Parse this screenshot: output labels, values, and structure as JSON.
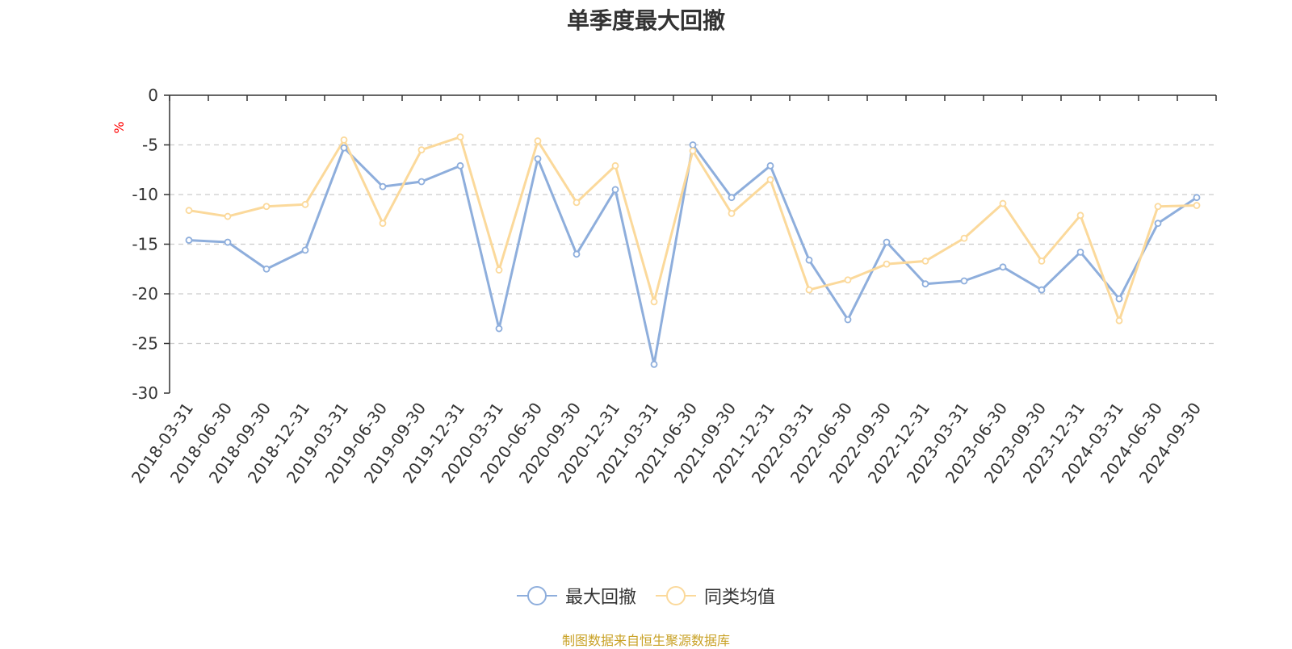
{
  "title": "单季度最大回撤",
  "source_note": "制图数据来自恒生聚源数据库",
  "colors": {
    "series1": "#8eaedc",
    "series2": "#fbd99b",
    "grid": "#cccccc",
    "axis": "#333333",
    "unit": "#ff0000"
  },
  "chart_data": {
    "type": "line",
    "ylabel": "%",
    "ylim": [
      -30,
      0
    ],
    "yticks": [
      0,
      -5,
      -10,
      -15,
      -20,
      -25,
      -30
    ],
    "grid": true,
    "legend_position": "bottom",
    "categories": [
      "2018-03-31",
      "2018-06-30",
      "2018-09-30",
      "2018-12-31",
      "2019-03-31",
      "2019-06-30",
      "2019-09-30",
      "2019-12-31",
      "2020-03-31",
      "2020-06-30",
      "2020-09-30",
      "2020-12-31",
      "2021-03-31",
      "2021-06-30",
      "2021-09-30",
      "2021-12-31",
      "2022-03-31",
      "2022-06-30",
      "2022-09-30",
      "2022-12-31",
      "2023-03-31",
      "2023-06-30",
      "2023-09-30",
      "2023-12-31",
      "2024-03-31",
      "2024-06-30",
      "2024-09-30"
    ],
    "series": [
      {
        "name": "最大回撤",
        "values": [
          -14.6,
          -14.8,
          -17.5,
          -15.6,
          -5.3,
          -9.2,
          -8.7,
          -7.1,
          -23.5,
          -6.4,
          -16.0,
          -9.5,
          -27.1,
          -5.0,
          -10.3,
          -7.1,
          -16.6,
          -22.6,
          -14.8,
          -19.0,
          -18.7,
          -17.3,
          -19.6,
          -15.8,
          -20.5,
          -12.9,
          -10.3
        ]
      },
      {
        "name": "同类均值",
        "values": [
          -11.6,
          -12.2,
          -11.2,
          -11.0,
          -4.5,
          -12.9,
          -5.5,
          -4.2,
          -17.6,
          -4.6,
          -10.8,
          -7.1,
          -20.8,
          -5.6,
          -11.9,
          -8.5,
          -19.6,
          -18.6,
          -17.0,
          -16.7,
          -14.4,
          -10.9,
          -16.7,
          -12.1,
          -22.7,
          -11.2,
          -11.1
        ]
      }
    ]
  }
}
